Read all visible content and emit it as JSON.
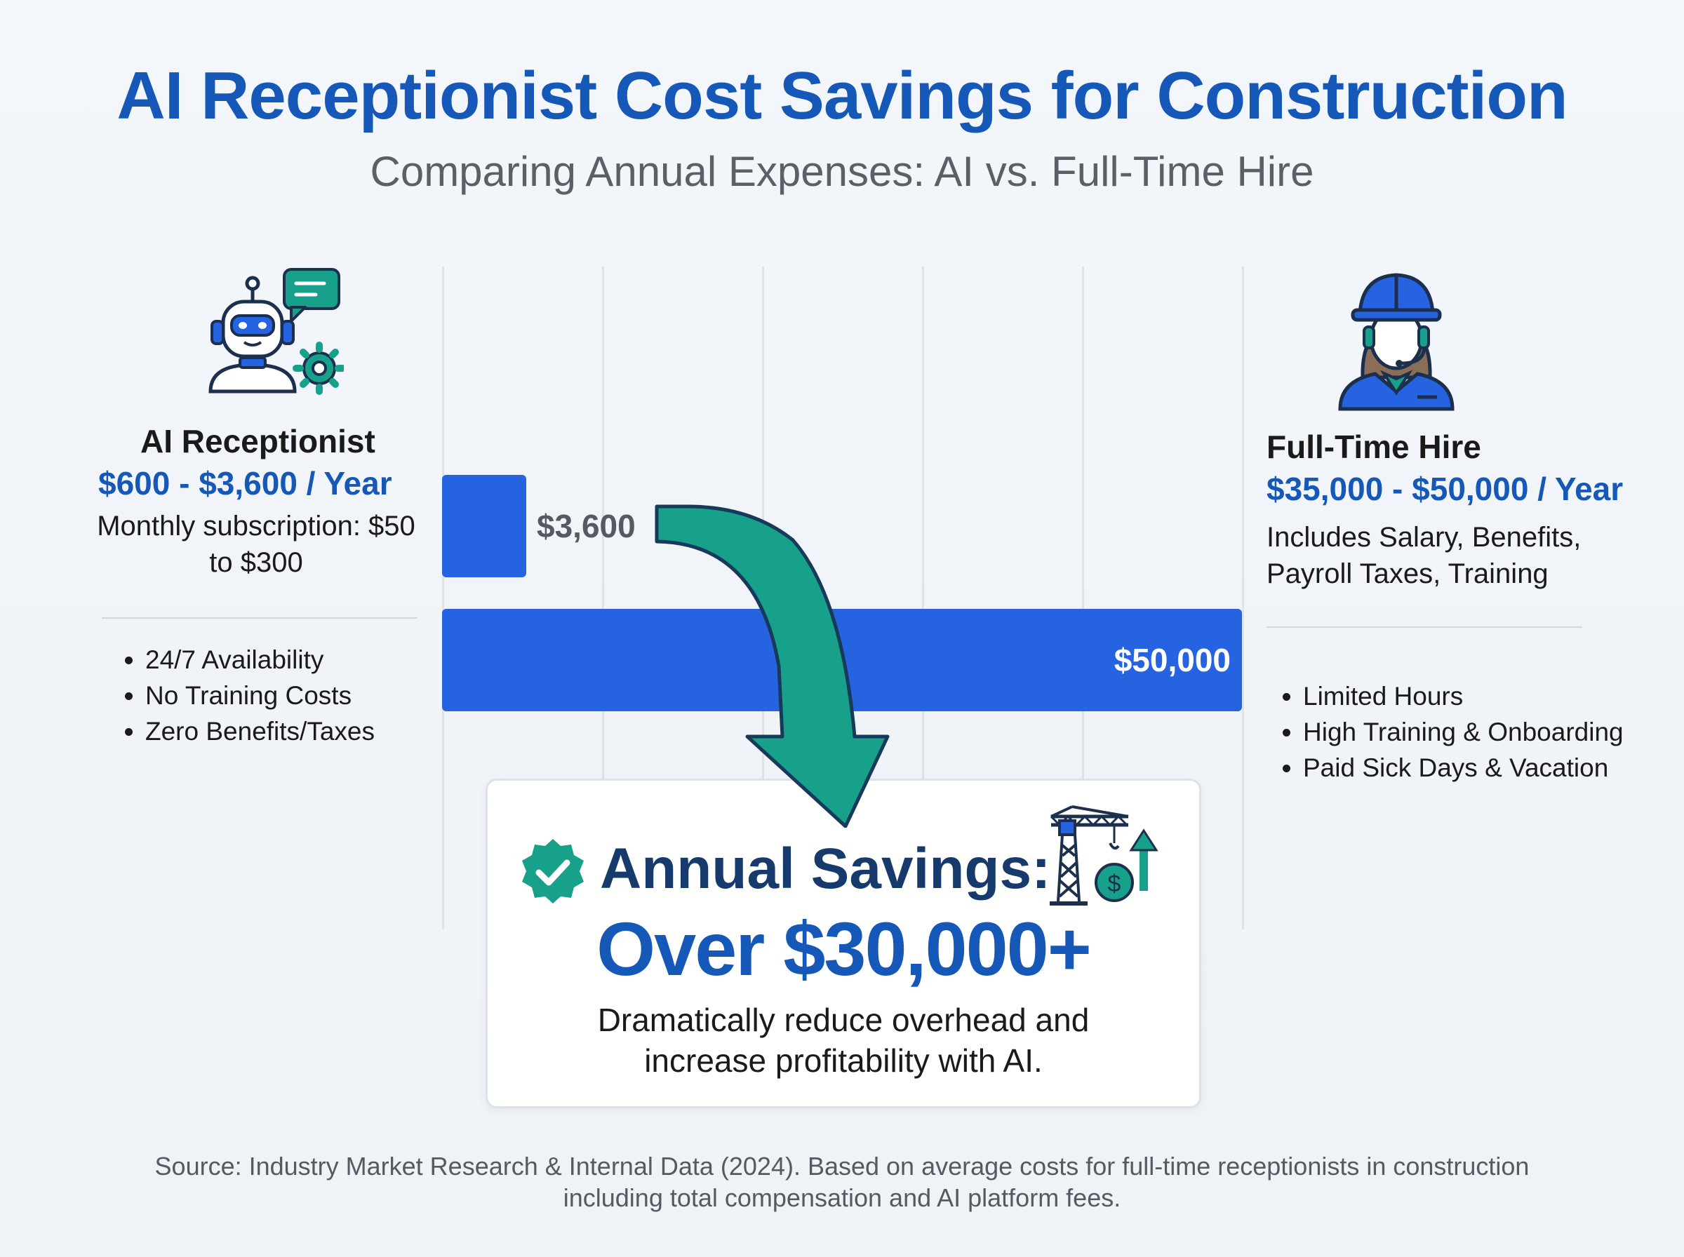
{
  "header": {
    "title": "AI Receptionist Cost Savings for Construction",
    "subtitle": "Comparing Annual Expenses: AI vs. Full-Time Hire"
  },
  "left_panel": {
    "title": "AI Receptionist",
    "price": "$600 - $3,600 / Year",
    "desc_line1": "Monthly subscription: $50",
    "desc_line2": "to $300",
    "bullets": [
      "24/7 Availability",
      "No Training Costs",
      "Zero Benefits/Taxes"
    ],
    "icon": "robot-chat-gear-icon"
  },
  "right_panel": {
    "title": "Full-Time Hire",
    "price": "$35,000 - $50,000 / Year",
    "desc_line1": "Includes Salary, Benefits,",
    "desc_line2": "Payroll Taxes, Training",
    "bullets": [
      "Limited Hours",
      "High Training & Onboarding",
      "Paid Sick Days & Vacation"
    ],
    "icon": "receptionist-hardhat-headset-icon"
  },
  "chart_data": {
    "type": "bar",
    "orientation": "horizontal",
    "categories": [
      "AI Receptionist",
      "Full-Time Hire"
    ],
    "values": [
      3600,
      50000
    ],
    "data_labels": [
      "$3,600",
      "$50,000"
    ],
    "xlim": [
      0,
      50000
    ],
    "grid": true
  },
  "savings": {
    "label": "Annual Savings:",
    "value": "Over $30,000+",
    "desc_line1": "Dramatically reduce overhead and",
    "desc_line2": "increase profitability with AI."
  },
  "source": {
    "line1": "Source: Industry Market Research & Internal Data (2024). Based on average costs for full-time receptionists in construction",
    "line2": "including total compensation and AI platform fees."
  },
  "colors": {
    "bar": "#2563e0",
    "title": "#1558b8",
    "arrow": "#17a08a",
    "navy": "#163a6b"
  }
}
